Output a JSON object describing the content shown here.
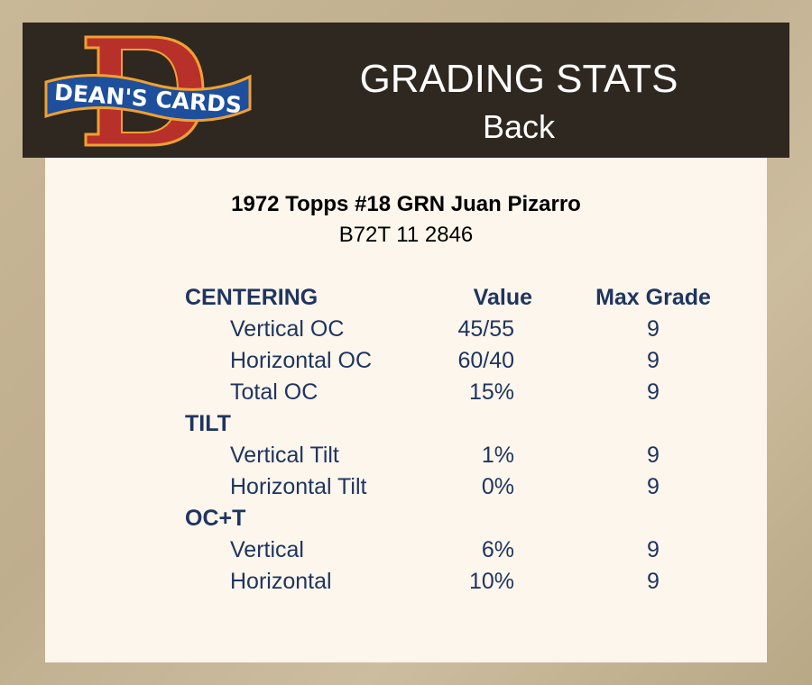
{
  "header": {
    "logo_text": "DEAN'S CARDS",
    "title": "GRADING STATS",
    "subtitle": "Back"
  },
  "card": {
    "name": "1972 Topps #18 GRN Juan Pizarro",
    "code": "B72T 11 2846"
  },
  "table": {
    "columns": [
      "CENTERING",
      "Value",
      "Max Grade"
    ],
    "rows": [
      {
        "type": "item",
        "label": "Vertical OC",
        "value": "45/55",
        "max_grade": "9"
      },
      {
        "type": "item",
        "label": "Horizontal OC",
        "value": "60/40",
        "max_grade": "9"
      },
      {
        "type": "item",
        "label": "Total OC",
        "value": "15%",
        "max_grade": "9"
      },
      {
        "type": "section",
        "label": "TILT"
      },
      {
        "type": "item",
        "label": "Vertical Tilt",
        "value": "1%",
        "max_grade": "9"
      },
      {
        "type": "item",
        "label": "Horizontal Tilt",
        "value": "0%",
        "max_grade": "9"
      },
      {
        "type": "section",
        "label": "OC+T"
      },
      {
        "type": "item",
        "label": "Vertical",
        "value": "6%",
        "max_grade": "9"
      },
      {
        "type": "item",
        "label": "Horizontal",
        "value": "10%",
        "max_grade": "9"
      }
    ]
  },
  "colors": {
    "header_bg": "#2e2820",
    "panel_bg": "#fcf6ec",
    "text": "#1f3560",
    "logo_red": "#c0392b",
    "logo_blue": "#1d4f9c",
    "logo_orange": "#f0a030"
  }
}
